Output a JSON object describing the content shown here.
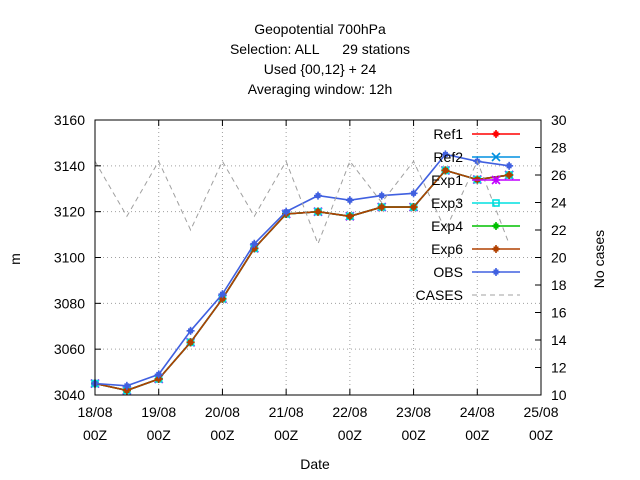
{
  "chart_data": {
    "type": "line",
    "title_lines": [
      "Geopotential 700hPa",
      "Selection: ALL      29 stations",
      "Used {00,12} + 24",
      "Averaging window: 12h"
    ],
    "xlabel": "Date",
    "ylabel": "m",
    "y2label": "No cases",
    "x_ticks": [
      {
        "date": "18/08",
        "hour": "00Z"
      },
      {
        "date": "19/08",
        "hour": "00Z"
      },
      {
        "date": "20/08",
        "hour": "00Z"
      },
      {
        "date": "21/08",
        "hour": "00Z"
      },
      {
        "date": "22/08",
        "hour": "00Z"
      },
      {
        "date": "23/08",
        "hour": "00Z"
      },
      {
        "date": "24/08",
        "hour": "00Z"
      },
      {
        "date": "25/08",
        "hour": "00Z"
      }
    ],
    "x_unit": "days from 18/08 00Z",
    "xlim": [
      0,
      7
    ],
    "ylim": [
      3040,
      3160
    ],
    "y_ticks": [
      3040,
      3060,
      3080,
      3100,
      3120,
      3140,
      3160
    ],
    "y2lim": [
      10,
      30
    ],
    "y2_ticks": [
      10,
      12,
      14,
      16,
      18,
      20,
      22,
      24,
      26,
      28,
      30
    ],
    "grid": true,
    "legend_position": "top-right",
    "x": [
      0,
      0.5,
      1,
      1.5,
      2,
      2.5,
      3,
      3.5,
      4,
      4.5,
      5,
      5.5,
      6,
      6.5
    ],
    "series": [
      {
        "name": "Ref1",
        "color": "#ff0000",
        "dash": "none",
        "marker": "plus",
        "axis": "y",
        "values": [
          3045,
          3042,
          3047,
          3063,
          3082,
          3104,
          3119,
          3120,
          3118,
          3122,
          3122,
          3138,
          3134,
          3136
        ]
      },
      {
        "name": "Ref2",
        "color": "#0090e0",
        "dash": "none",
        "marker": "x",
        "axis": "y",
        "values": [
          3045,
          3042,
          3047,
          3063,
          3082,
          3104,
          3119,
          3120,
          3118,
          3122,
          3122,
          3138,
          3134,
          3136
        ]
      },
      {
        "name": "Exp1",
        "color": "#c000ff",
        "dash": "none",
        "marker": "star",
        "axis": "y",
        "values": [
          3045,
          3042,
          3047,
          3063,
          3082,
          3104,
          3119,
          3120,
          3118,
          3122,
          3122,
          3138,
          3134,
          3136
        ]
      },
      {
        "name": "Exp3",
        "color": "#00e0e0",
        "dash": "none",
        "marker": "square",
        "axis": "y",
        "values": [
          3045,
          3042,
          3047,
          3063,
          3082,
          3104,
          3119,
          3120,
          3118,
          3122,
          3122,
          3138,
          3134,
          3136
        ]
      },
      {
        "name": "Exp4",
        "color": "#00c000",
        "dash": "none",
        "marker": "plus",
        "axis": "y",
        "values": [
          3045,
          3042,
          3047,
          3063,
          3082,
          3104,
          3119,
          3120,
          3118,
          3122,
          3122,
          3138,
          3134,
          3136
        ]
      },
      {
        "name": "Exp6",
        "color": "#b04000",
        "dash": "none",
        "marker": "plus",
        "axis": "y",
        "values": [
          3045,
          3042,
          3047,
          3063,
          3082,
          3104,
          3119,
          3120,
          3118,
          3122,
          3122,
          3138,
          3134,
          3136
        ]
      },
      {
        "name": "OBS",
        "color": "#4060e0",
        "dash": "none",
        "marker": "plus",
        "axis": "y",
        "values": [
          3045,
          3044,
          3049,
          3068,
          3084,
          3106,
          3120,
          3127,
          3125,
          3127,
          3128,
          3145,
          3142,
          3140
        ]
      },
      {
        "name": "CASES",
        "color": "#a0a0a0",
        "dash": "5,4",
        "marker": "none",
        "axis": "y2",
        "values": [
          27,
          23,
          27,
          22,
          27,
          23,
          27,
          21,
          27,
          24,
          27,
          22,
          27,
          21
        ]
      }
    ]
  }
}
